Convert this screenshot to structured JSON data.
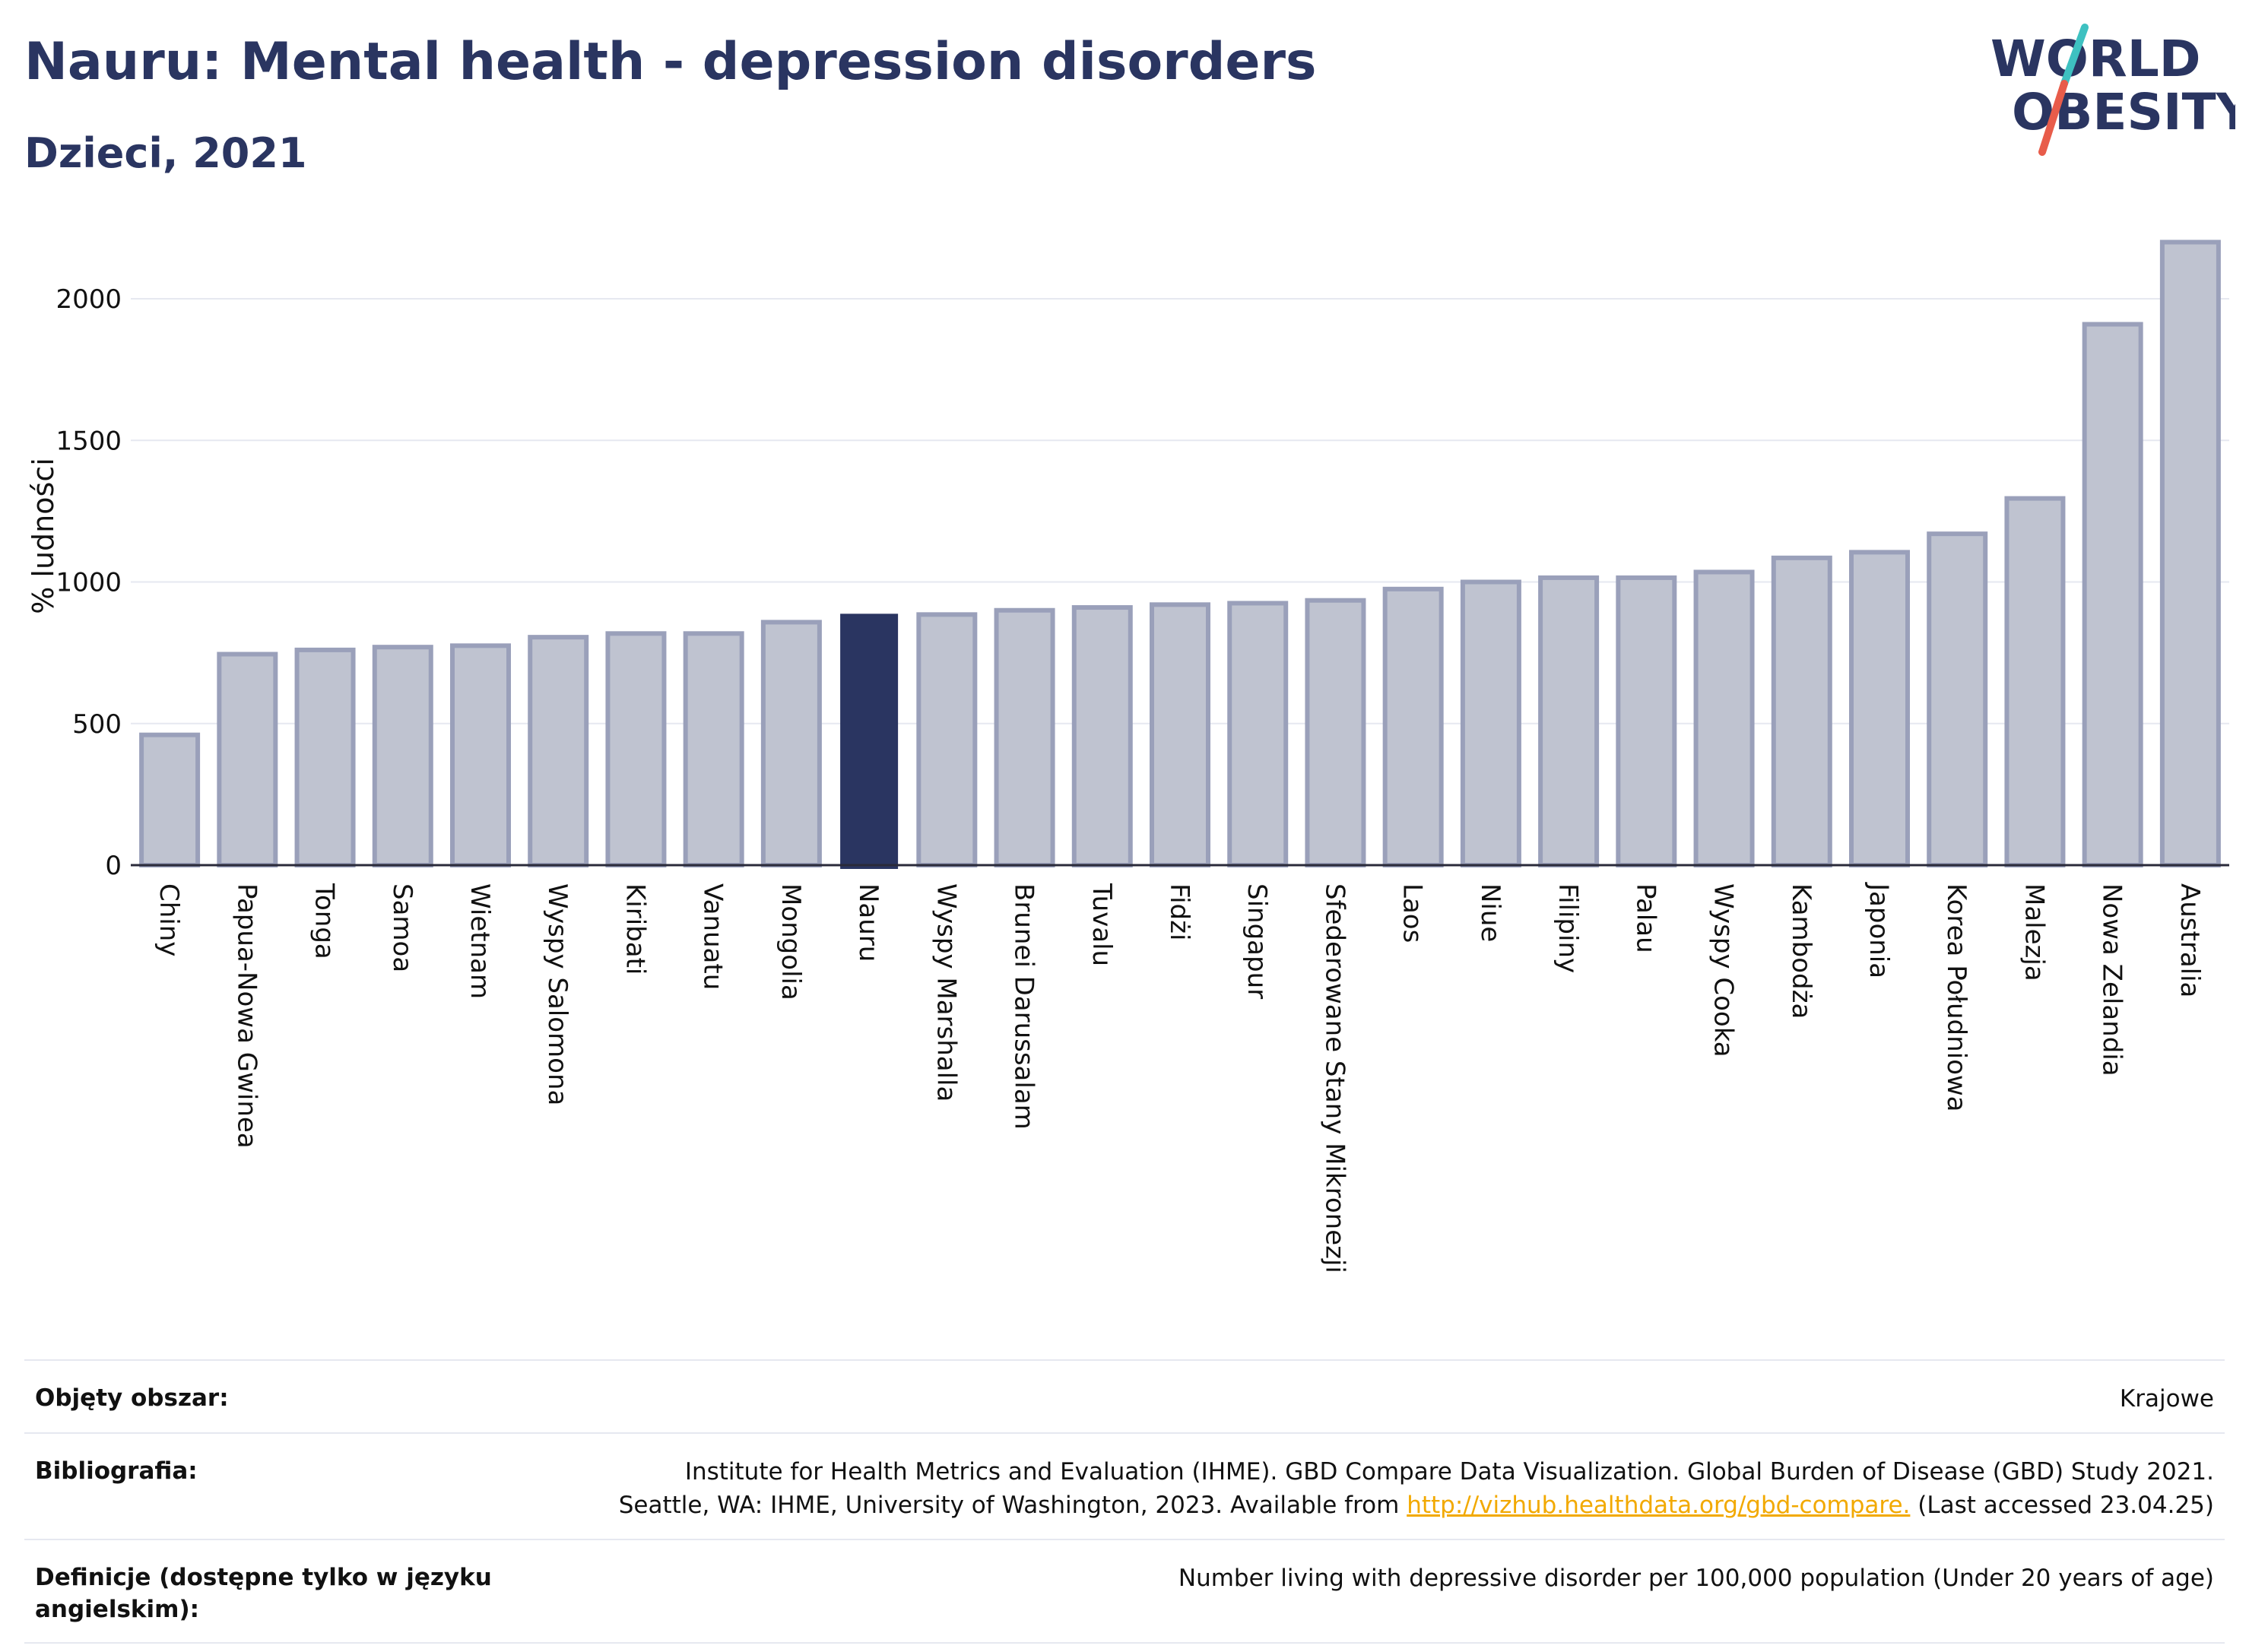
{
  "header": {
    "title": "Nauru: Mental health - depression disorders",
    "subtitle": "Dzieci, 2021"
  },
  "logo": {
    "line1": "WORLD",
    "line2": "OBESITY"
  },
  "colors": {
    "bar_fill": "#bfc3d0",
    "bar_stroke": "#9aa0ba",
    "highlight": "#2a3561",
    "grid": "#e6e8f0",
    "logo_teal": "#3ec1c1",
    "logo_red": "#e85c4a",
    "link": "#f2a900"
  },
  "chart_data": {
    "type": "bar",
    "title": "Nauru: Mental health - depression disorders",
    "subtitle": "Dzieci, 2021",
    "ylabel": "% ludności",
    "xlabel": "",
    "ylim": [
      0,
      2240
    ],
    "yticks": [
      0,
      500,
      1000,
      1500,
      2000
    ],
    "grid": true,
    "highlight": "Nauru",
    "categories": [
      "Chiny",
      "Papua-Nowa Gwinea",
      "Tonga",
      "Samoa",
      "Wietnam",
      "Wyspy Salomona",
      "Kiribati",
      "Vanuatu",
      "Mongolia",
      "Nauru",
      "Wyspy Marshalla",
      "Brunei Darussalam",
      "Tuvalu",
      "Fidżi",
      "Singapur",
      "Sfederowane Stany Mikronezji",
      "Laos",
      "Niue",
      "Filipiny",
      "Palau",
      "Wyspy Cooka",
      "Kambodża",
      "Japonia",
      "Korea Południowa",
      "Malezja",
      "Nowa Zelandia",
      "Australia"
    ],
    "values": [
      460,
      745,
      760,
      770,
      775,
      805,
      818,
      818,
      858,
      885,
      885,
      900,
      910,
      920,
      925,
      935,
      975,
      1000,
      1015,
      1015,
      1035,
      1085,
      1105,
      1170,
      1295,
      1910,
      2200
    ]
  },
  "info": {
    "rows": [
      {
        "key": "Objęty obszar:",
        "value": "Krajowe"
      },
      {
        "key": "Bibliografia:",
        "value_line1": "Institute for Health Metrics and Evaluation (IHME). GBD Compare Data Visualization. Global Burden of Disease (GBD) Study 2021.",
        "value_line2_pre": "Seattle, WA: IHME, University of Washington, 2023. Available from ",
        "link": "http://vizhub.healthdata.org/gbd-compare.",
        "value_line2_post": " (Last accessed 23.04.25)"
      },
      {
        "key": "Definicje (dostępne tylko w języku angielskim):",
        "value": "Number living with depressive disorder per 100,000 population (Under 20 years of age)"
      }
    ]
  }
}
